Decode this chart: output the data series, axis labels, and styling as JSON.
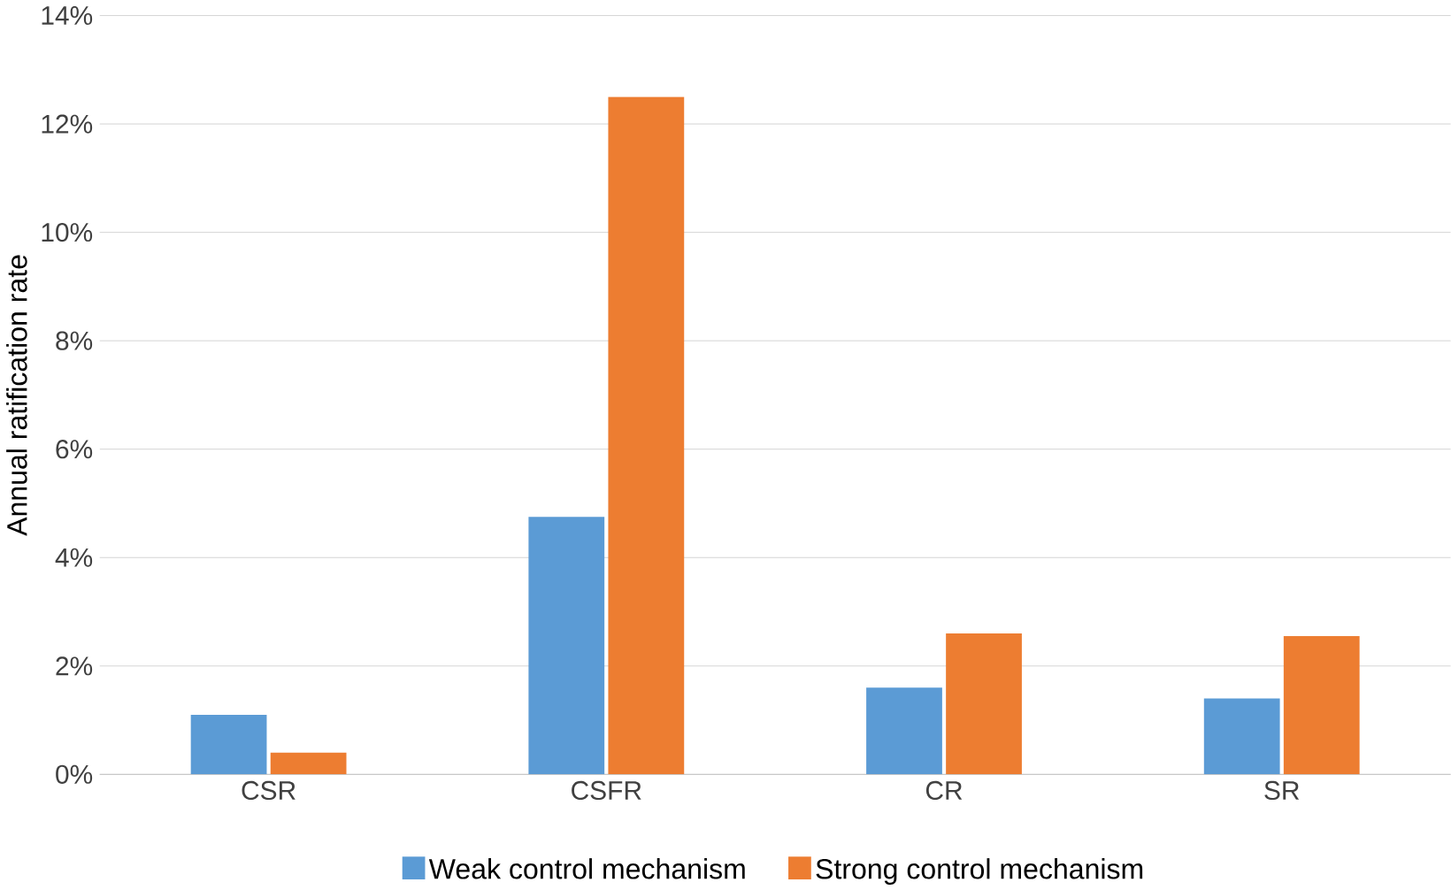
{
  "chart_data": {
    "type": "bar",
    "ylabel": "Annual ratification rate",
    "categories": [
      "CSR",
      "CSFR",
      "CR",
      "SR"
    ],
    "series": [
      {
        "name": "Weak control mechanism",
        "color": "#5b9bd5",
        "values": [
          1.1,
          4.75,
          1.6,
          1.4
        ]
      },
      {
        "name": "Strong control mechanism",
        "color": "#ed7d31",
        "values": [
          0.4,
          12.5,
          2.6,
          2.55
        ]
      }
    ],
    "ylim": [
      0,
      14
    ],
    "yticks": [
      {
        "value": 0,
        "label": "0%"
      },
      {
        "value": 2,
        "label": "2%"
      },
      {
        "value": 4,
        "label": "4%"
      },
      {
        "value": 6,
        "label": "6%"
      },
      {
        "value": 8,
        "label": "8%"
      },
      {
        "value": 10,
        "label": "10%"
      },
      {
        "value": 12,
        "label": "12%"
      },
      {
        "value": 14,
        "label": "14%"
      }
    ],
    "grid": "y",
    "legend": "bottom"
  }
}
